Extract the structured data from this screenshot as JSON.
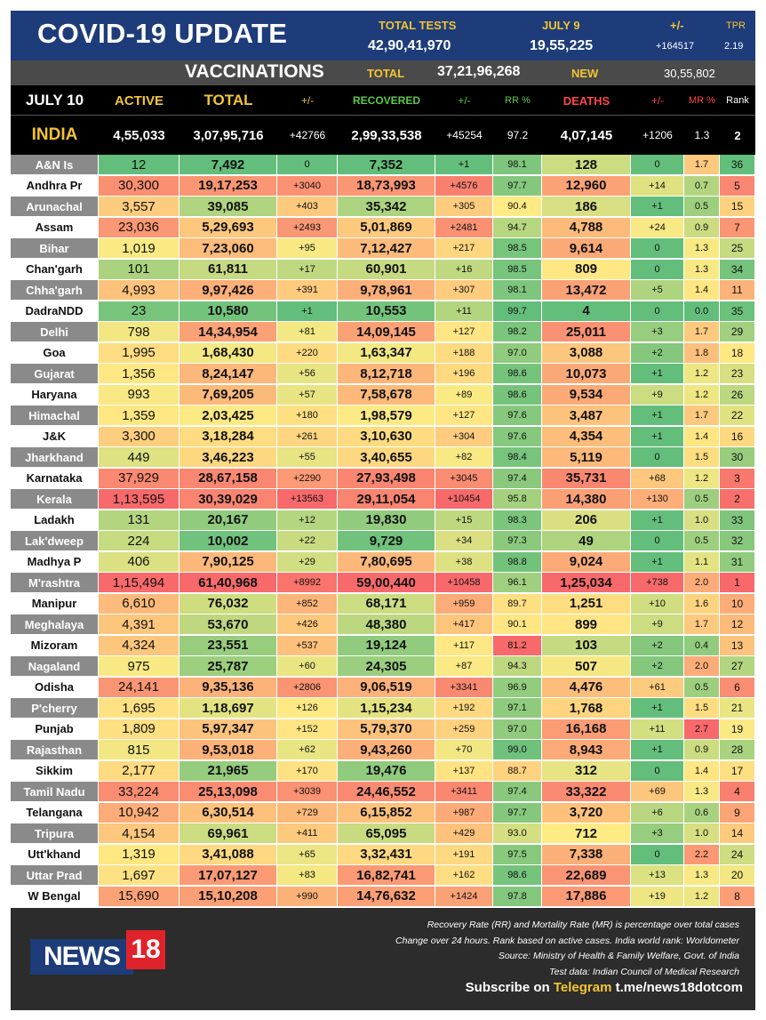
{
  "header": {
    "title": "COVID-19 UPDATE",
    "total_tests_label": "TOTAL TESTS",
    "total_tests": "42,90,41,970",
    "day_label": "JULY 9",
    "day_tests": "19,55,225",
    "change_label": "+/-",
    "change": "+164517",
    "tpr_label": "TPR",
    "tpr": "2.19",
    "vacc_label": "VACCINATIONS",
    "vacc_total_label": "TOTAL",
    "vacc_total": "37,21,96,268",
    "vacc_new_label": "NEW",
    "vacc_new": "30,55,802"
  },
  "columns": {
    "date": "JULY 10",
    "active": "ACTIVE",
    "total": "TOTAL",
    "total_change": "+/-",
    "recovered": "RECOVERED",
    "rec_change": "+/-",
    "rr": "RR %",
    "deaths": "DEATHS",
    "death_change": "+/-",
    "mr": "MR %",
    "rank": "Rank"
  },
  "india": {
    "name": "INDIA",
    "active": "4,55,033",
    "total": "3,07,95,716",
    "total_change": "+42766",
    "recovered": "2,99,33,538",
    "rec_change": "+45254",
    "rr": "97.2",
    "deaths": "4,07,145",
    "death_change": "+1206",
    "mr": "1.3",
    "rank": "2"
  },
  "states": [
    {
      "name": "A&N Is",
      "active": "12",
      "total": "7,492",
      "tc": "0",
      "recovered": "7,352",
      "rc": "+1",
      "rr": "98.1",
      "deaths": "128",
      "dc": "0",
      "mr": "1.7",
      "rank": "36"
    },
    {
      "name": "Andhra Pr",
      "active": "30,300",
      "total": "19,17,253",
      "tc": "+3040",
      "recovered": "18,73,993",
      "rc": "+4576",
      "rr": "97.7",
      "deaths": "12,960",
      "dc": "+14",
      "mr": "0.7",
      "rank": "5"
    },
    {
      "name": "Arunachal",
      "active": "3,557",
      "total": "39,085",
      "tc": "+403",
      "recovered": "35,342",
      "rc": "+305",
      "rr": "90.4",
      "deaths": "186",
      "dc": "+1",
      "mr": "0.5",
      "rank": "15"
    },
    {
      "name": "Assam",
      "active": "23,036",
      "total": "5,29,693",
      "tc": "+2493",
      "recovered": "5,01,869",
      "rc": "+2481",
      "rr": "94.7",
      "deaths": "4,788",
      "dc": "+24",
      "mr": "0.9",
      "rank": "7"
    },
    {
      "name": "Bihar",
      "active": "1,019",
      "total": "7,23,060",
      "tc": "+95",
      "recovered": "7,12,427",
      "rc": "+217",
      "rr": "98.5",
      "deaths": "9,614",
      "dc": "0",
      "mr": "1.3",
      "rank": "25"
    },
    {
      "name": "Chan'garh",
      "active": "101",
      "total": "61,811",
      "tc": "+17",
      "recovered": "60,901",
      "rc": "+16",
      "rr": "98.5",
      "deaths": "809",
      "dc": "0",
      "mr": "1.3",
      "rank": "34"
    },
    {
      "name": "Chha'garh",
      "active": "4,993",
      "total": "9,97,426",
      "tc": "+391",
      "recovered": "9,78,961",
      "rc": "+307",
      "rr": "98.1",
      "deaths": "13,472",
      "dc": "+5",
      "mr": "1.4",
      "rank": "11"
    },
    {
      "name": "DadraNDD",
      "active": "23",
      "total": "10,580",
      "tc": "+1",
      "recovered": "10,553",
      "rc": "+11",
      "rr": "99.7",
      "deaths": "4",
      "dc": "0",
      "mr": "0.0",
      "rank": "35"
    },
    {
      "name": "Delhi",
      "active": "798",
      "total": "14,34,954",
      "tc": "+81",
      "recovered": "14,09,145",
      "rc": "+127",
      "rr": "98.2",
      "deaths": "25,011",
      "dc": "+3",
      "mr": "1.7",
      "rank": "29"
    },
    {
      "name": "Goa",
      "active": "1,995",
      "total": "1,68,430",
      "tc": "+220",
      "recovered": "1,63,347",
      "rc": "+188",
      "rr": "97.0",
      "deaths": "3,088",
      "dc": "+2",
      "mr": "1.8",
      "rank": "18"
    },
    {
      "name": "Gujarat",
      "active": "1,356",
      "total": "8,24,147",
      "tc": "+56",
      "recovered": "8,12,718",
      "rc": "+196",
      "rr": "98.6",
      "deaths": "10,073",
      "dc": "+1",
      "mr": "1.2",
      "rank": "23"
    },
    {
      "name": "Haryana",
      "active": "993",
      "total": "7,69,205",
      "tc": "+57",
      "recovered": "7,58,678",
      "rc": "+89",
      "rr": "98.6",
      "deaths": "9,534",
      "dc": "+9",
      "mr": "1.2",
      "rank": "26"
    },
    {
      "name": "Himachal",
      "active": "1,359",
      "total": "2,03,425",
      "tc": "+180",
      "recovered": "1,98,579",
      "rc": "+127",
      "rr": "97.6",
      "deaths": "3,487",
      "dc": "+1",
      "mr": "1.7",
      "rank": "22"
    },
    {
      "name": "J&K",
      "active": "3,300",
      "total": "3,18,284",
      "tc": "+261",
      "recovered": "3,10,630",
      "rc": "+304",
      "rr": "97.6",
      "deaths": "4,354",
      "dc": "+1",
      "mr": "1.4",
      "rank": "16"
    },
    {
      "name": "Jharkhand",
      "active": "449",
      "total": "3,46,223",
      "tc": "+55",
      "recovered": "3,40,655",
      "rc": "+82",
      "rr": "98.4",
      "deaths": "5,119",
      "dc": "0",
      "mr": "1.5",
      "rank": "30"
    },
    {
      "name": "Karnataka",
      "active": "37,929",
      "total": "28,67,158",
      "tc": "+2290",
      "recovered": "27,93,498",
      "rc": "+3045",
      "rr": "97.4",
      "deaths": "35,731",
      "dc": "+68",
      "mr": "1.2",
      "rank": "3"
    },
    {
      "name": "Kerala",
      "active": "1,13,595",
      "total": "30,39,029",
      "tc": "+13563",
      "recovered": "29,11,054",
      "rc": "+10454",
      "rr": "95.8",
      "deaths": "14,380",
      "dc": "+130",
      "mr": "0.5",
      "rank": "2"
    },
    {
      "name": "Ladakh",
      "active": "131",
      "total": "20,167",
      "tc": "+12",
      "recovered": "19,830",
      "rc": "+15",
      "rr": "98.3",
      "deaths": "206",
      "dc": "+1",
      "mr": "1.0",
      "rank": "33"
    },
    {
      "name": "Lak'dweep",
      "active": "224",
      "total": "10,002",
      "tc": "+22",
      "recovered": "9,729",
      "rc": "+34",
      "rr": "97.3",
      "deaths": "49",
      "dc": "0",
      "mr": "0.5",
      "rank": "32"
    },
    {
      "name": "Madhya P",
      "active": "406",
      "total": "7,90,125",
      "tc": "+29",
      "recovered": "7,80,695",
      "rc": "+38",
      "rr": "98.8",
      "deaths": "9,024",
      "dc": "+1",
      "mr": "1.1",
      "rank": "31"
    },
    {
      "name": "M'rashtra",
      "active": "1,15,494",
      "total": "61,40,968",
      "tc": "+8992",
      "recovered": "59,00,440",
      "rc": "+10458",
      "rr": "96.1",
      "deaths": "1,25,034",
      "dc": "+738",
      "mr": "2.0",
      "rank": "1"
    },
    {
      "name": "Manipur",
      "active": "6,610",
      "total": "76,032",
      "tc": "+852",
      "recovered": "68,171",
      "rc": "+959",
      "rr": "89.7",
      "deaths": "1,251",
      "dc": "+10",
      "mr": "1.6",
      "rank": "10"
    },
    {
      "name": "Meghalaya",
      "active": "4,391",
      "total": "53,670",
      "tc": "+426",
      "recovered": "48,380",
      "rc": "+417",
      "rr": "90.1",
      "deaths": "899",
      "dc": "+9",
      "mr": "1.7",
      "rank": "12"
    },
    {
      "name": "Mizoram",
      "active": "4,324",
      "total": "23,551",
      "tc": "+537",
      "recovered": "19,124",
      "rc": "+117",
      "rr": "81.2",
      "deaths": "103",
      "dc": "+2",
      "mr": "0.4",
      "rank": "13"
    },
    {
      "name": "Nagaland",
      "active": "975",
      "total": "25,787",
      "tc": "+60",
      "recovered": "24,305",
      "rc": "+87",
      "rr": "94.3",
      "deaths": "507",
      "dc": "+2",
      "mr": "2.0",
      "rank": "27"
    },
    {
      "name": "Odisha",
      "active": "24,141",
      "total": "9,35,136",
      "tc": "+2806",
      "recovered": "9,06,519",
      "rc": "+3341",
      "rr": "96.9",
      "deaths": "4,476",
      "dc": "+61",
      "mr": "0.5",
      "rank": "6"
    },
    {
      "name": "P'cherry",
      "active": "1,695",
      "total": "1,18,697",
      "tc": "+126",
      "recovered": "1,15,234",
      "rc": "+192",
      "rr": "97.1",
      "deaths": "1,768",
      "dc": "+1",
      "mr": "1.5",
      "rank": "21"
    },
    {
      "name": "Punjab",
      "active": "1,809",
      "total": "5,97,347",
      "tc": "+152",
      "recovered": "5,79,370",
      "rc": "+259",
      "rr": "97.0",
      "deaths": "16,168",
      "dc": "+11",
      "mr": "2.7",
      "rank": "19"
    },
    {
      "name": "Rajasthan",
      "active": "815",
      "total": "9,53,018",
      "tc": "+62",
      "recovered": "9,43,260",
      "rc": "+70",
      "rr": "99.0",
      "deaths": "8,943",
      "dc": "+1",
      "mr": "0.9",
      "rank": "28"
    },
    {
      "name": "Sikkim",
      "active": "2,177",
      "total": "21,965",
      "tc": "+170",
      "recovered": "19,476",
      "rc": "+137",
      "rr": "88.7",
      "deaths": "312",
      "dc": "0",
      "mr": "1.4",
      "rank": "17"
    },
    {
      "name": "Tamil Nadu",
      "active": "33,224",
      "total": "25,13,098",
      "tc": "+3039",
      "recovered": "24,46,552",
      "rc": "+3411",
      "rr": "97.4",
      "deaths": "33,322",
      "dc": "+69",
      "mr": "1.3",
      "rank": "4"
    },
    {
      "name": "Telangana",
      "active": "10,942",
      "total": "6,30,514",
      "tc": "+729",
      "recovered": "6,15,852",
      "rc": "+987",
      "rr": "97.7",
      "deaths": "3,720",
      "dc": "+6",
      "mr": "0.6",
      "rank": "9"
    },
    {
      "name": "Tripura",
      "active": "4,154",
      "total": "69,961",
      "tc": "+411",
      "recovered": "65,095",
      "rc": "+429",
      "rr": "93.0",
      "deaths": "712",
      "dc": "+3",
      "mr": "1.0",
      "rank": "14"
    },
    {
      "name": "Utt'khand",
      "active": "1,319",
      "total": "3,41,088",
      "tc": "+65",
      "recovered": "3,32,431",
      "rc": "+191",
      "rr": "97.5",
      "deaths": "7,338",
      "dc": "0",
      "mr": "2.2",
      "rank": "24"
    },
    {
      "name": "Uttar Prad",
      "active": "1,697",
      "total": "17,07,127",
      "tc": "+83",
      "recovered": "16,82,741",
      "rc": "+162",
      "rr": "98.6",
      "deaths": "22,689",
      "dc": "+13",
      "mr": "1.3",
      "rank": "20"
    },
    {
      "name": "W Bengal",
      "active": "15,690",
      "total": "15,10,208",
      "tc": "+990",
      "recovered": "14,76,632",
      "rc": "+1424",
      "rr": "97.8",
      "deaths": "17,886",
      "dc": "+19",
      "mr": "1.2",
      "rank": "8"
    }
  ],
  "footer": {
    "notes": [
      "Recovery Rate (RR) and Mortality Rate (MR) is percentage over total cases",
      "Change over 24 hours. Rank based on active cases. India world rank: Worldometer",
      "Source: Ministry of Health & Family Welfare, Govt. of India",
      "Test data: Indian Council of Medical Research"
    ],
    "logo_text": "NEWS",
    "logo_num": "18",
    "subscribe_prefix": "Subscribe on",
    "subscribe_app": "Telegram",
    "subscribe_link": "t.me/news18dotcom"
  },
  "colors": {
    "header_blue": "#1d3c79",
    "accent_yellow": "#f3c433",
    "recovered_green": "#5cc94a",
    "deaths_red": "#ff4646",
    "logo_red": "#e0232a"
  }
}
